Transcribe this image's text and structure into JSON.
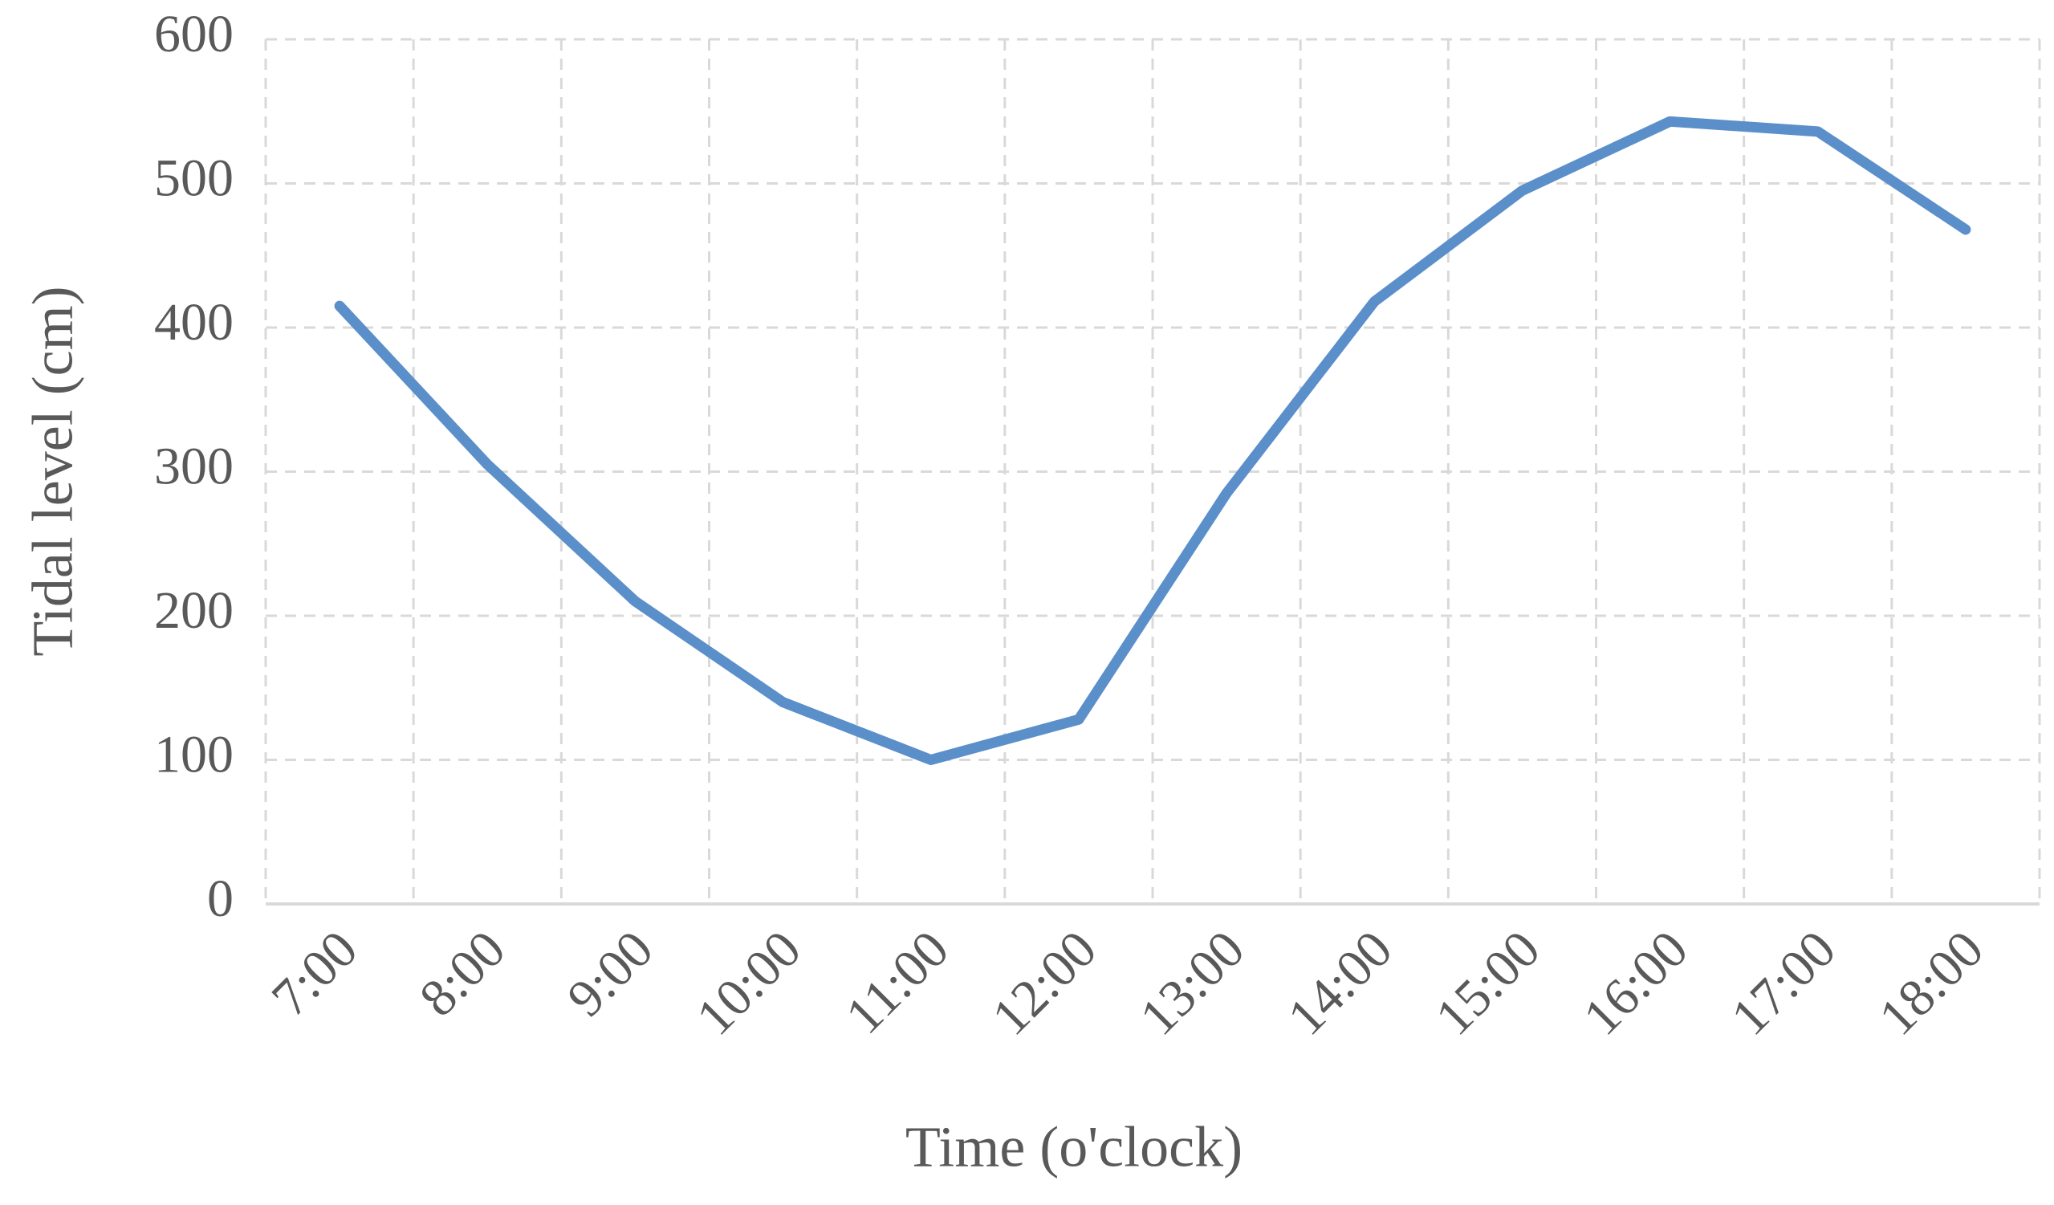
{
  "chart_data": {
    "type": "line",
    "x_label": "Time (o'clock)",
    "y_label": "Tidal level (cm)",
    "categories": [
      "7:00",
      "8:00",
      "9:00",
      "10:00",
      "11:00",
      "12:00",
      "13:00",
      "14:00",
      "15:00",
      "16:00",
      "17:00",
      "18:00"
    ],
    "series": [
      {
        "color": "#5b8fc9",
        "values": [
          415,
          305,
          210,
          140,
          100,
          128,
          285,
          418,
          495,
          543,
          536,
          468
        ]
      }
    ],
    "ylim": [
      0,
      600
    ],
    "yticks": [
      0,
      100,
      200,
      300,
      400,
      500,
      600
    ],
    "grid": true
  }
}
